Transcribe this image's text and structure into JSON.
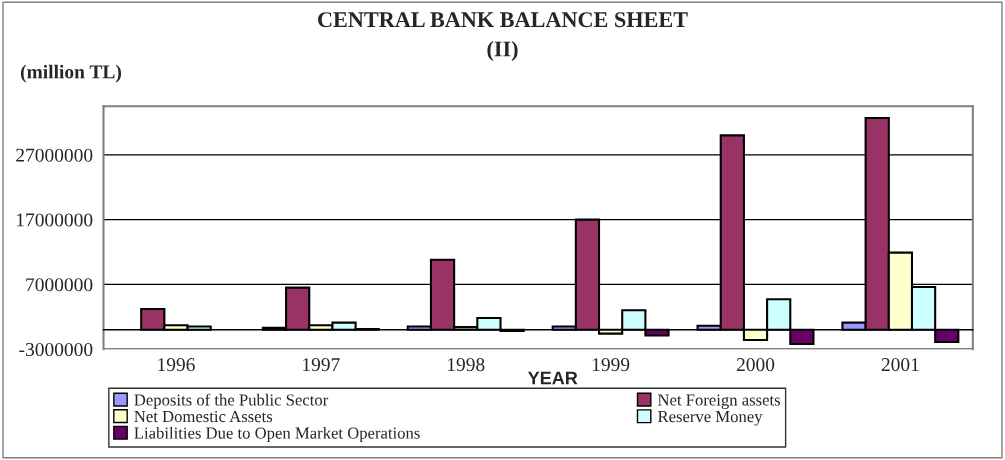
{
  "chart_data": {
    "type": "bar",
    "title": "CENTRAL BANK BALANCE SHEET\n(II)",
    "ylabel": "(million TL)",
    "xlabel": "YEAR",
    "categories": [
      "1996",
      "1997",
      "1998",
      "1999",
      "2000",
      "2001"
    ],
    "series": [
      {
        "name": "Deposits of the Public Sector",
        "color": "#9999ff",
        "values": [
          null,
          300000,
          500000,
          500000,
          600000,
          1100000
        ]
      },
      {
        "name": "Net Foreign assets",
        "color": "#993366",
        "values": [
          3200000,
          6500000,
          10800000,
          17000000,
          30000000,
          32700000
        ]
      },
      {
        "name": "Net Domestic Assets",
        "color": "#ffffcc",
        "values": [
          700000,
          700000,
          400000,
          -600000,
          -1600000,
          11900000
        ]
      },
      {
        "name": "Reserve Money",
        "color": "#ccffff",
        "values": [
          500000,
          1100000,
          1800000,
          3000000,
          4700000,
          6600000
        ]
      },
      {
        "name": "Liabilities Due to Open Market Operations",
        "color": "#660066",
        "values": [
          null,
          100000,
          -200000,
          -900000,
          -2200000,
          -1900000
        ]
      }
    ],
    "ylim": [
      -3000000,
      34500000
    ],
    "yticks": [
      -3000000,
      7000000,
      17000000,
      27000000
    ],
    "grid": "y",
    "legend": "bottom"
  }
}
